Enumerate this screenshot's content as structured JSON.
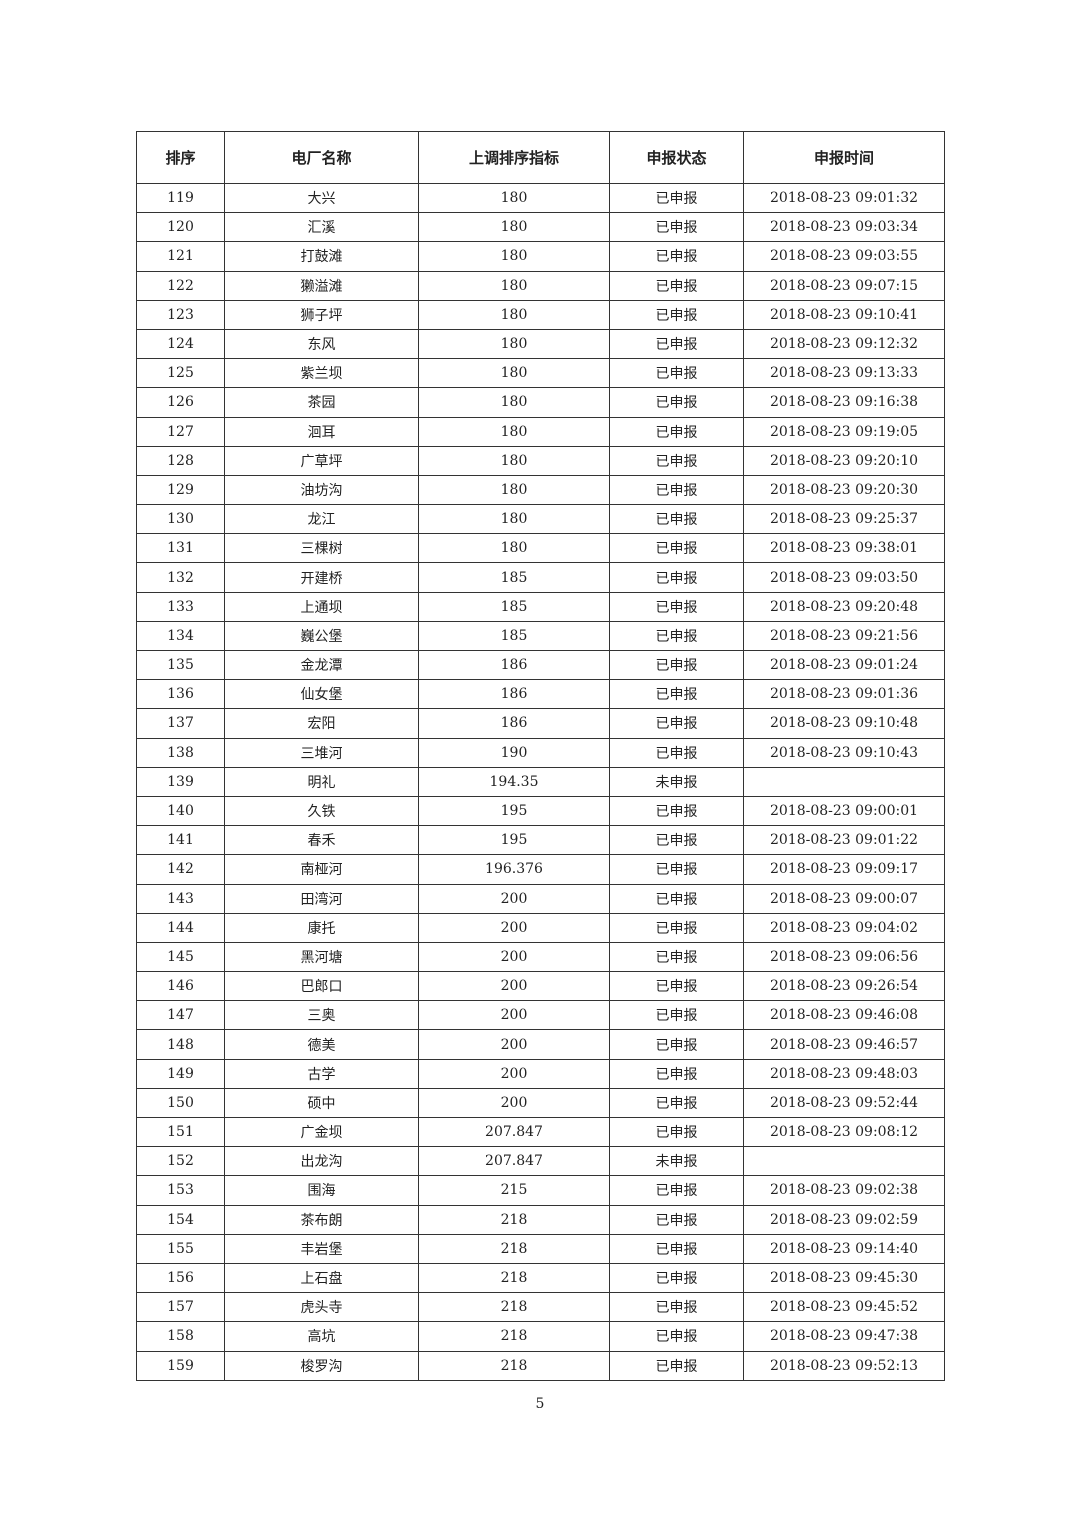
{
  "table": {
    "headers": [
      "排序",
      "电厂名称",
      "上调排序指标",
      "申报状态",
      "申报时间"
    ],
    "rows": [
      [
        "119",
        "大兴",
        "180",
        "已申报",
        "2018-08-23 09:01:32"
      ],
      [
        "120",
        "汇溪",
        "180",
        "已申报",
        "2018-08-23 09:03:34"
      ],
      [
        "121",
        "打鼓滩",
        "180",
        "已申报",
        "2018-08-23 09:03:55"
      ],
      [
        "122",
        "獭溢滩",
        "180",
        "已申报",
        "2018-08-23 09:07:15"
      ],
      [
        "123",
        "狮子坪",
        "180",
        "已申报",
        "2018-08-23 09:10:41"
      ],
      [
        "124",
        "东风",
        "180",
        "已申报",
        "2018-08-23 09:12:32"
      ],
      [
        "125",
        "紫兰坝",
        "180",
        "已申报",
        "2018-08-23 09:13:33"
      ],
      [
        "126",
        "茶园",
        "180",
        "已申报",
        "2018-08-23 09:16:38"
      ],
      [
        "127",
        "洄耳",
        "180",
        "已申报",
        "2018-08-23 09:19:05"
      ],
      [
        "128",
        "广草坪",
        "180",
        "已申报",
        "2018-08-23 09:20:10"
      ],
      [
        "129",
        "油坊沟",
        "180",
        "已申报",
        "2018-08-23 09:20:30"
      ],
      [
        "130",
        "龙江",
        "180",
        "已申报",
        "2018-08-23 09:25:37"
      ],
      [
        "131",
        "三棵树",
        "180",
        "已申报",
        "2018-08-23 09:38:01"
      ],
      [
        "132",
        "开建桥",
        "185",
        "已申报",
        "2018-08-23 09:03:50"
      ],
      [
        "133",
        "上通坝",
        "185",
        "已申报",
        "2018-08-23 09:20:48"
      ],
      [
        "134",
        "巍公堡",
        "185",
        "已申报",
        "2018-08-23 09:21:56"
      ],
      [
        "135",
        "金龙潭",
        "186",
        "已申报",
        "2018-08-23 09:01:24"
      ],
      [
        "136",
        "仙女堡",
        "186",
        "已申报",
        "2018-08-23 09:01:36"
      ],
      [
        "137",
        "宏阳",
        "186",
        "已申报",
        "2018-08-23 09:10:48"
      ],
      [
        "138",
        "三堆河",
        "190",
        "已申报",
        "2018-08-23 09:10:43"
      ],
      [
        "139",
        "明礼",
        "194.35",
        "未申报",
        ""
      ],
      [
        "140",
        "久铁",
        "195",
        "已申报",
        "2018-08-23 09:00:01"
      ],
      [
        "141",
        "春禾",
        "195",
        "已申报",
        "2018-08-23 09:01:22"
      ],
      [
        "142",
        "南桠河",
        "196.376",
        "已申报",
        "2018-08-23 09:09:17"
      ],
      [
        "143",
        "田湾河",
        "200",
        "已申报",
        "2018-08-23 09:00:07"
      ],
      [
        "144",
        "康托",
        "200",
        "已申报",
        "2018-08-23 09:04:02"
      ],
      [
        "145",
        "黑河塘",
        "200",
        "已申报",
        "2018-08-23 09:06:56"
      ],
      [
        "146",
        "巴郎口",
        "200",
        "已申报",
        "2018-08-23 09:26:54"
      ],
      [
        "147",
        "三奥",
        "200",
        "已申报",
        "2018-08-23 09:46:08"
      ],
      [
        "148",
        "德美",
        "200",
        "已申报",
        "2018-08-23 09:46:57"
      ],
      [
        "149",
        "古学",
        "200",
        "已申报",
        "2018-08-23 09:48:03"
      ],
      [
        "150",
        "硕中",
        "200",
        "已申报",
        "2018-08-23 09:52:44"
      ],
      [
        "151",
        "广金坝",
        "207.847",
        "已申报",
        "2018-08-23 09:08:12"
      ],
      [
        "152",
        "出龙沟",
        "207.847",
        "未申报",
        ""
      ],
      [
        "153",
        "围海",
        "215",
        "已申报",
        "2018-08-23 09:02:38"
      ],
      [
        "154",
        "茶布朗",
        "218",
        "已申报",
        "2018-08-23 09:02:59"
      ],
      [
        "155",
        "丰岩堡",
        "218",
        "已申报",
        "2018-08-23 09:14:40"
      ],
      [
        "156",
        "上石盘",
        "218",
        "已申报",
        "2018-08-23 09:45:30"
      ],
      [
        "157",
        "虎头寺",
        "218",
        "已申报",
        "2018-08-23 09:45:52"
      ],
      [
        "158",
        "高坑",
        "218",
        "已申报",
        "2018-08-23 09:47:38"
      ],
      [
        "159",
        "梭罗沟",
        "218",
        "已申报",
        "2018-08-23 09:52:13"
      ]
    ]
  },
  "page_number": "5"
}
